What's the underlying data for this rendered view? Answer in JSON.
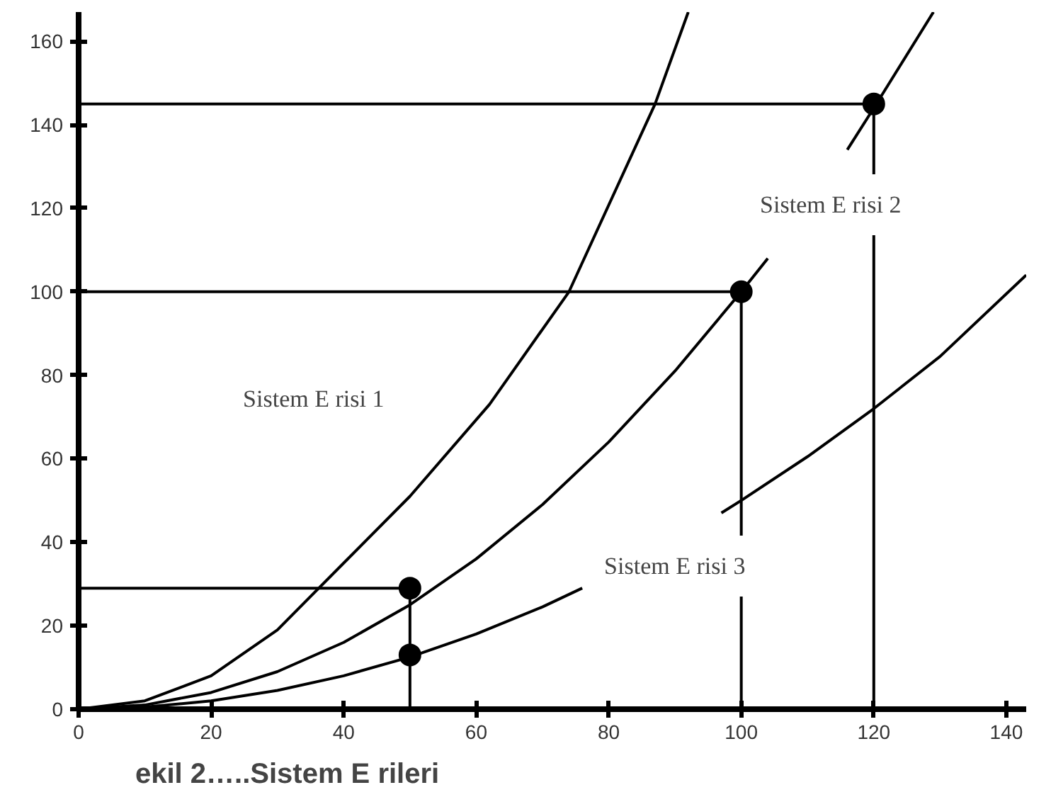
{
  "chart_data": {
    "type": "line",
    "title": "ekil 2…..Sistem E  rileri",
    "xlim": [
      0,
      143
    ],
    "ylim": [
      0,
      167
    ],
    "xticks": [
      0,
      20,
      40,
      60,
      80,
      100,
      120,
      140
    ],
    "yticks": [
      0,
      20,
      40,
      60,
      80,
      100,
      120,
      140,
      160
    ],
    "grid": false,
    "series": [
      {
        "color": "#000000",
        "x": [
          0,
          10,
          20,
          30,
          35,
          40,
          50,
          62,
          74,
          87,
          92
        ],
        "values": [
          0,
          2,
          8,
          19,
          27,
          35,
          51,
          73,
          100,
          145,
          167
        ]
      },
      {
        "color": "#000000",
        "x": [
          0,
          10,
          20,
          30,
          40,
          50,
          60,
          70,
          80,
          90,
          100,
          104,
          110,
          116,
          120,
          129
        ],
        "values": [
          0,
          1,
          4,
          9,
          16,
          25,
          36,
          49,
          64,
          81,
          100,
          108,
          null,
          134,
          144,
          167
        ]
      },
      {
        "color": "#000000",
        "x": [
          0,
          10,
          20,
          30,
          40,
          50,
          60,
          70,
          76,
          80,
          90,
          97,
          100,
          110,
          120,
          130,
          143
        ],
        "values": [
          0,
          0.5,
          2,
          4.5,
          8,
          12.5,
          18,
          24.5,
          29,
          null,
          null,
          47,
          50,
          60.5,
          72,
          84.5,
          104
        ]
      },
      {
        "color": "#000000",
        "x": [
          0,
          50,
          50
        ],
        "values": [
          29,
          29,
          0
        ]
      },
      {
        "color": "#000000",
        "x": [
          0,
          100,
          100
        ],
        "values": [
          100,
          100,
          0
        ]
      },
      {
        "color": "#000000",
        "x": [
          0,
          120,
          120
        ],
        "values": [
          145,
          145,
          0
        ]
      },
      {
        "type": "scatter",
        "marker": "circle",
        "color": "#000000",
        "x": [
          50,
          50,
          100,
          120
        ],
        "values": [
          29,
          13,
          100,
          145
        ]
      }
    ],
    "annotations": [
      "Sistem E  risi 1",
      "Sistem E  risi 2",
      "Sistem E  risi 3"
    ]
  }
}
